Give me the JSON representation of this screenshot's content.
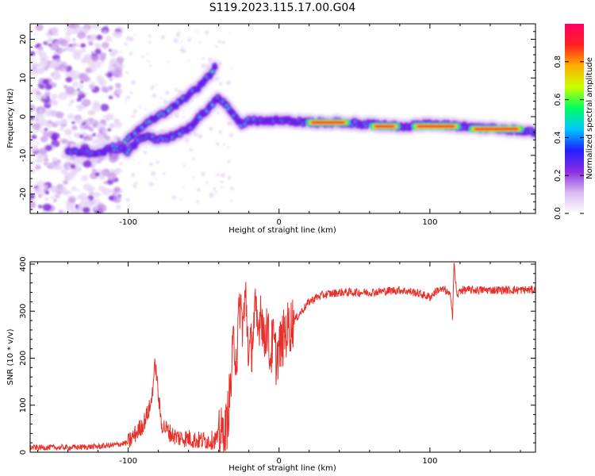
{
  "title": "S119.2023.115.17.00.G04",
  "chart_data": [
    {
      "type": "heatmap",
      "xlabel": "Height of straight line (km)",
      "ylabel": "Frequency (Hz)",
      "xlim": [
        -165,
        170
      ],
      "ylim": [
        -25,
        24
      ],
      "x_ticks": [
        -100,
        0,
        100
      ],
      "y_ticks": [
        -20,
        -10,
        0,
        10,
        20
      ],
      "colorbar": {
        "label": "Normalized spectral amplitude",
        "range": [
          0.0,
          1.0
        ],
        "ticks": [
          "0.0",
          "0.2",
          "0.4",
          "0.6",
          "0.8"
        ],
        "colors": [
          "#ffffff",
          "#d9b8f0",
          "#8a2be2",
          "#2020ff",
          "#00c8ff",
          "#00ff60",
          "#c8ff00",
          "#ffb000",
          "#ff2020",
          "#ff0066"
        ]
      },
      "ridge_upper": {
        "x": [
          -105,
          -95,
          -85,
          -75,
          -65,
          -55,
          -50,
          -45,
          -42
        ],
        "y": [
          -8,
          -4,
          -1,
          1,
          4,
          7,
          9,
          11,
          13
        ]
      },
      "ridge_lower": {
        "x": [
          -140,
          -130,
          -120,
          -110,
          -100,
          -90,
          -80,
          -70,
          -60,
          -50,
          -40,
          -35,
          -30,
          -25,
          -20,
          -10,
          0,
          20,
          40,
          60,
          80,
          100,
          120,
          140,
          160,
          170
        ],
        "y": [
          -9,
          -9,
          -9.5,
          -8,
          -9,
          -5,
          -6,
          -5,
          -3,
          1,
          5,
          3,
          0,
          -2,
          -1,
          -1,
          -1,
          -1.5,
          -1.5,
          -2,
          -2.5,
          -2,
          -2.5,
          -3,
          -3.5,
          -4
        ]
      },
      "hot_segments": [
        {
          "x": [
            20,
            45
          ],
          "y": -1.5
        },
        {
          "x": [
            62,
            78
          ],
          "y": -2.5
        },
        {
          "x": [
            90,
            118
          ],
          "y": -2.5
        },
        {
          "x": [
            128,
            160
          ],
          "y": -3.2
        }
      ]
    },
    {
      "type": "line",
      "xlabel": "Height of straight line (km)",
      "ylabel": "SNR (10 * v/v)",
      "xlim": [
        -165,
        170
      ],
      "ylim": [
        0,
        405
      ],
      "x_ticks": [
        -100,
        0,
        100
      ],
      "y_ticks": [
        0,
        100,
        200,
        300,
        400
      ],
      "color": "#e8302a",
      "series": [
        {
          "x": [
            -165,
            -140,
            -120,
            -110,
            -100,
            -95,
            -90,
            -85,
            -82,
            -80,
            -78,
            -75,
            -72,
            -70,
            -65,
            -60,
            -55,
            -50,
            -45,
            -40,
            -35,
            -32,
            -30,
            -28,
            -26,
            -24,
            -22,
            -20,
            -18,
            -16,
            -14,
            -12,
            -10,
            -8,
            -6,
            -4,
            -2,
            0,
            5,
            10,
            15,
            20,
            25,
            30,
            40,
            60,
            80,
            90,
            100,
            105,
            110,
            114,
            115,
            116,
            118,
            120,
            140,
            160,
            170
          ],
          "y": [
            10,
            10,
            12,
            15,
            20,
            40,
            60,
            100,
            190,
            120,
            60,
            50,
            40,
            35,
            30,
            30,
            25,
            25,
            25,
            30,
            50,
            140,
            240,
            200,
            320,
            270,
            330,
            200,
            230,
            300,
            250,
            320,
            230,
            280,
            200,
            240,
            200,
            220,
            260,
            280,
            300,
            320,
            330,
            335,
            340,
            340,
            345,
            340,
            330,
            345,
            345,
            330,
            290,
            400,
            330,
            345,
            345,
            345,
            345
          ]
        }
      ]
    }
  ]
}
